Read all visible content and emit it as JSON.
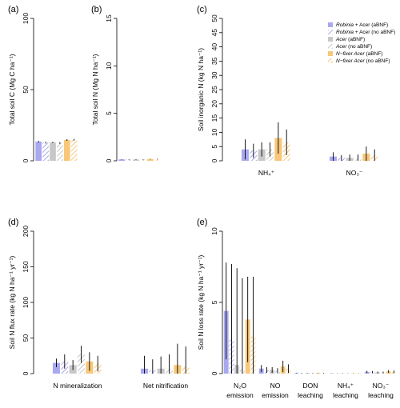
{
  "colors": {
    "robinia": "#a9a9f0",
    "acer": "#c8c8c8",
    "nfixer": "#f7c77a",
    "err": "#000000"
  },
  "legend": {
    "entries": [
      {
        "species": "Robinia",
        "rest": " + Acer (aBNF)",
        "style": "solid",
        "color": "robinia"
      },
      {
        "species": "Robinia",
        "rest": " + Acer (no aBNF)",
        "style": "hatch",
        "color": "robinia"
      },
      {
        "species": "Acer",
        "rest": " (aBNF)",
        "style": "solid",
        "color": "acer"
      },
      {
        "species": "Acer",
        "rest": " (no aBNF)",
        "style": "hatch",
        "color": "acer"
      },
      {
        "species": "N−fixer Acer",
        "rest": " (aBNF)",
        "style": "solid",
        "color": "nfixer"
      },
      {
        "species": "N−fixer Acer",
        "rest": " (no aBNF)",
        "style": "hatch",
        "color": "nfixer"
      }
    ]
  },
  "chart_data": [
    {
      "panel": "(a)",
      "type": "bar",
      "ylabel": "Total soil C (Mg C ha⁻¹)",
      "ylim": [
        0,
        100
      ],
      "yticks": [
        0,
        50,
        100
      ],
      "categories": [
        ""
      ],
      "series": [
        {
          "values": [
            13.5
          ],
          "err": [
            0.5
          ]
        },
        {
          "values": [
            12.8
          ],
          "err": [
            0.6
          ]
        },
        {
          "values": [
            12.9
          ],
          "err": [
            0.5
          ]
        },
        {
          "values": [
            12.5
          ],
          "err": [
            0.6
          ]
        },
        {
          "values": [
            14.6
          ],
          "err": [
            0.6
          ]
        },
        {
          "values": [
            14.8
          ],
          "err": [
            0.6
          ]
        }
      ]
    },
    {
      "panel": "(b)",
      "type": "bar",
      "ylabel": "Total soil N (Mg N ha⁻¹)",
      "ylim": [
        0,
        15
      ],
      "yticks": [
        0,
        5,
        10,
        15
      ],
      "categories": [
        ""
      ],
      "series": [
        {
          "values": [
            0.15
          ],
          "err": [
            0.03
          ]
        },
        {
          "values": [
            0.14
          ],
          "err": [
            0.03
          ]
        },
        {
          "values": [
            0.14
          ],
          "err": [
            0.03
          ]
        },
        {
          "values": [
            0.14
          ],
          "err": [
            0.03
          ]
        },
        {
          "values": [
            0.18
          ],
          "err": [
            0.03
          ]
        },
        {
          "values": [
            0.18
          ],
          "err": [
            0.03
          ]
        }
      ]
    },
    {
      "panel": "(c)",
      "type": "bar",
      "ylabel": "Soil inorganic N (kg N ha⁻¹)",
      "ylim": [
        0,
        50
      ],
      "yticks": [
        0,
        5,
        10,
        15,
        20,
        25,
        30,
        35,
        40,
        45,
        50
      ],
      "categories": [
        "NH₄⁺",
        "NO₃⁻"
      ],
      "series": [
        {
          "values": [
            4.0,
            1.5
          ],
          "err": [
            3.5,
            1.5
          ]
        },
        {
          "values": [
            3.5,
            1.0
          ],
          "err": [
            2.5,
            1.0
          ]
        },
        {
          "values": [
            4.0,
            1.0
          ],
          "err": [
            2.5,
            1.2
          ]
        },
        {
          "values": [
            4.0,
            1.0
          ],
          "err": [
            2.5,
            1.2
          ]
        },
        {
          "values": [
            8.0,
            2.5
          ],
          "err": [
            5.5,
            2.5
          ]
        },
        {
          "values": [
            6.5,
            2.0
          ],
          "err": [
            4.5,
            2.0
          ]
        }
      ]
    },
    {
      "panel": "(d)",
      "type": "bar",
      "ylabel": "Soil N flux rate (kg N ha⁻¹ yr⁻¹)",
      "ylim": [
        0,
        200
      ],
      "yticks": [
        0,
        50,
        100,
        150,
        200
      ],
      "categories": [
        "N mineralization",
        "Net nitrification"
      ],
      "series": [
        {
          "values": [
            15,
            7
          ],
          "err": [
            6,
            18
          ]
        },
        {
          "values": [
            17,
            5
          ],
          "err": [
            10,
            15
          ]
        },
        {
          "values": [
            12,
            7
          ],
          "err": [
            7,
            17
          ]
        },
        {
          "values": [
            27,
            7
          ],
          "err": [
            12,
            20
          ]
        },
        {
          "values": [
            17,
            12
          ],
          "err": [
            13,
            30
          ]
        },
        {
          "values": [
            14,
            10
          ],
          "err": [
            11,
            28
          ]
        }
      ]
    },
    {
      "panel": "(e)",
      "type": "bar",
      "ylabel": "Soil N loss rate (kg N ha⁻¹ yr⁻¹)",
      "ylim": [
        0,
        10
      ],
      "yticks": [
        0,
        5,
        10
      ],
      "categories": [
        "N₂O emission",
        "NO emission",
        "DON leaching",
        "NH₄⁺ leaching",
        "NO₃⁻ leaching"
      ],
      "cat_lines": [
        [
          "N₂O",
          "emission"
        ],
        [
          "NO",
          "emission"
        ],
        [
          "DON",
          "leaching"
        ],
        [
          "NH₄⁺",
          "leaching"
        ],
        [
          "NO₃⁻",
          "leaching"
        ]
      ],
      "series": [
        {
          "values": [
            4.4,
            0.35,
            0.04,
            0.02,
            0.12
          ],
          "err": [
            3.4,
            0.25,
            0.02,
            0.01,
            0.08
          ]
        },
        {
          "values": [
            2.4,
            0.25,
            0.03,
            0.02,
            0.1
          ],
          "err": [
            5.3,
            0.2,
            0.02,
            0.01,
            0.08
          ]
        },
        {
          "values": [
            0.6,
            0.25,
            0.03,
            0.02,
            0.08
          ],
          "err": [
            6.8,
            0.2,
            0.02,
            0.01,
            0.06
          ]
        },
        {
          "values": [
            0.3,
            0.2,
            0.03,
            0.02,
            0.08
          ],
          "err": [
            6.4,
            0.18,
            0.02,
            0.01,
            0.06
          ]
        },
        {
          "values": [
            3.8,
            0.5,
            0.04,
            0.02,
            0.15
          ],
          "err": [
            3.0,
            0.4,
            0.02,
            0.01,
            0.1
          ]
        },
        {
          "values": [
            2.6,
            0.35,
            0.03,
            0.02,
            0.12
          ],
          "err": [
            4.2,
            0.3,
            0.02,
            0.01,
            0.1
          ]
        }
      ]
    }
  ]
}
